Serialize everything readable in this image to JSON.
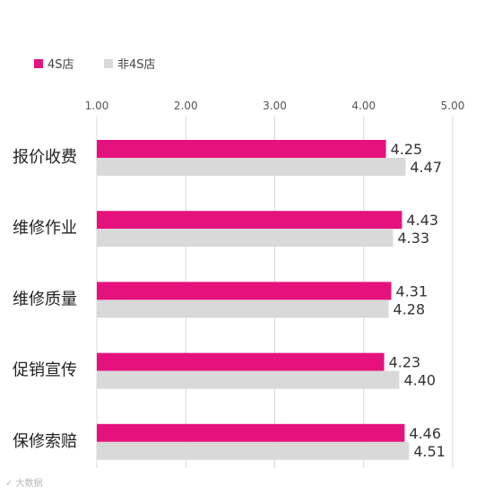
{
  "chart_data": {
    "type": "bar",
    "orientation": "horizontal",
    "categories": [
      "报价收费",
      "维修作业",
      "维修质量",
      "促销宣传",
      "保修索赔"
    ],
    "series": [
      {
        "name": "4S店",
        "values": [
          4.25,
          4.43,
          4.31,
          4.23,
          4.46
        ],
        "labels": [
          "4.25",
          "4.43",
          "4.31",
          "4.23",
          "4.46"
        ]
      },
      {
        "name": "非4S店",
        "values": [
          4.47,
          4.33,
          4.28,
          4.4,
          4.51
        ],
        "labels": [
          "4.47",
          "4.33",
          "4.28",
          "4.40",
          "4.51"
        ]
      }
    ],
    "xlim": [
      1,
      5
    ],
    "xticks": [
      "1.00",
      "2.00",
      "3.00",
      "4.00",
      "5.00"
    ],
    "axis_position": "top",
    "legend_position": "top-left",
    "grid": true
  },
  "colors": {
    "series_1": "#e5127d",
    "series_2": "#d9d9d9",
    "grid": "#d9d9d9"
  }
}
